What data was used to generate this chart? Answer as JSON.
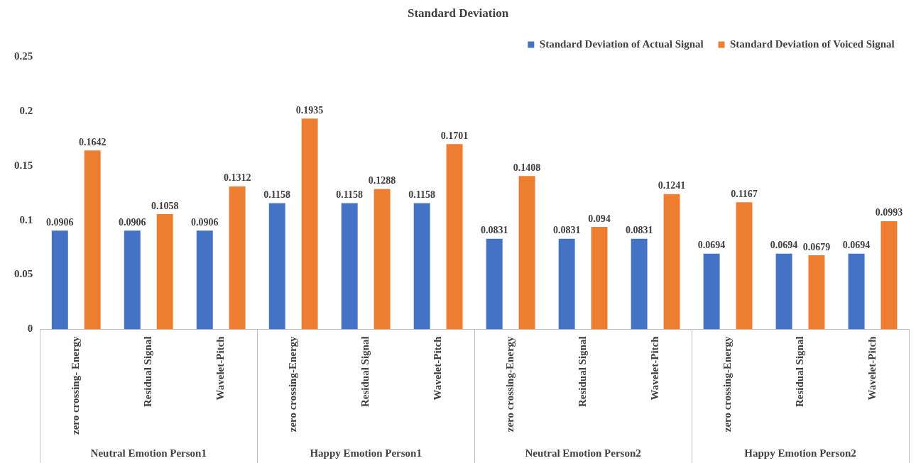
{
  "chart_data": {
    "type": "bar",
    "title": "Standard Deviation",
    "categories": [
      "zero crossing- Energy",
      "Residual Signal",
      "Wavelet-Pitch",
      "zero crossing-Energy",
      "Residual Signal",
      "Wavelet-Pitch",
      "zero crossing-Energy",
      "Residual Signal",
      "Wavelet-Pitch",
      "zero crossing-Energy",
      "Residual Signal",
      "Wavelet-Pitch"
    ],
    "series": [
      {
        "name": "Standard Deviation of Actual Signal",
        "color": "#4472c4",
        "values": [
          0.0906,
          0.0906,
          0.0906,
          0.1158,
          0.1158,
          0.1158,
          0.0831,
          0.0831,
          0.0831,
          0.0694,
          0.0694,
          0.0694
        ]
      },
      {
        "name": "Standard Deviation of Voiced Signal",
        "color": "#ed7d31",
        "values": [
          0.1642,
          0.1058,
          0.1312,
          0.1935,
          0.1288,
          0.1701,
          0.1408,
          0.094,
          0.1241,
          0.1167,
          0.0679,
          0.0993
        ]
      }
    ],
    "annotations": [
      "Neutral Emotion Person1",
      "Happy Emotion Person1",
      "Neutral Emotion Person2",
      "Happy Emotion Person2"
    ],
    "ylim": [
      0,
      0.25
    ],
    "yticks": [
      0,
      0.05,
      0.1,
      0.15,
      0.2,
      0.25
    ],
    "grid": false,
    "legend": "top right",
    "data_labels": true
  }
}
